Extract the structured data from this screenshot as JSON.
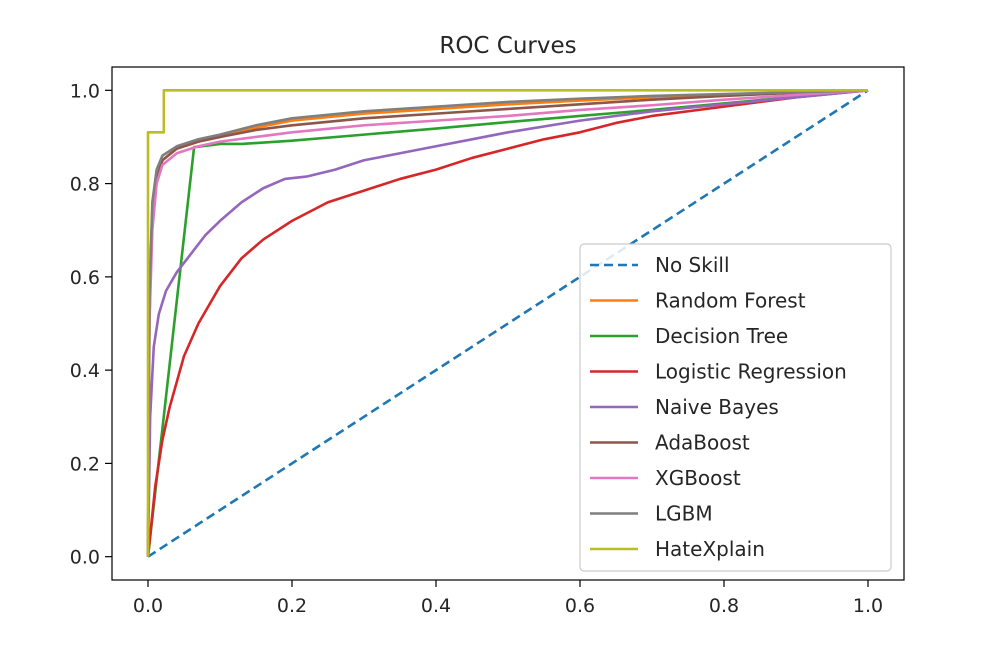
{
  "chart_data": {
    "type": "line",
    "title": "ROC Curves",
    "xlabel": "",
    "ylabel": "",
    "xlim": [
      -0.05,
      1.05
    ],
    "ylim": [
      -0.05,
      1.05
    ],
    "x_ticks": [
      "0.0",
      "0.2",
      "0.4",
      "0.6",
      "0.8",
      "1.0"
    ],
    "x_tick_values": [
      0.0,
      0.2,
      0.4,
      0.6,
      0.8,
      1.0
    ],
    "y_ticks": [
      "0.0",
      "0.2",
      "0.4",
      "0.6",
      "0.8",
      "1.0"
    ],
    "y_tick_values": [
      0.0,
      0.2,
      0.4,
      0.6,
      0.8,
      1.0
    ],
    "grid": false,
    "legend_position": "lower-right",
    "series": [
      {
        "name": "No Skill",
        "color": "#1f77b4",
        "dashed": true,
        "points": [
          [
            0,
            0
          ],
          [
            1,
            1
          ]
        ]
      },
      {
        "name": "Random Forest",
        "color": "#ff7f0e",
        "dashed": false,
        "points": [
          [
            0,
            0
          ],
          [
            0.002,
            0.5
          ],
          [
            0.005,
            0.7
          ],
          [
            0.01,
            0.8
          ],
          [
            0.02,
            0.85
          ],
          [
            0.04,
            0.875
          ],
          [
            0.07,
            0.89
          ],
          [
            0.1,
            0.9
          ],
          [
            0.15,
            0.92
          ],
          [
            0.2,
            0.935
          ],
          [
            0.3,
            0.95
          ],
          [
            0.4,
            0.96
          ],
          [
            0.5,
            0.97
          ],
          [
            0.6,
            0.978
          ],
          [
            0.7,
            0.985
          ],
          [
            0.8,
            0.99
          ],
          [
            0.9,
            0.995
          ],
          [
            1,
            1
          ]
        ]
      },
      {
        "name": "Decision Tree",
        "color": "#2ca02c",
        "dashed": false,
        "points": [
          [
            0,
            0
          ],
          [
            0.064,
            0.878
          ],
          [
            0.1,
            0.885
          ],
          [
            0.13,
            0.885
          ],
          [
            0.2,
            0.892
          ],
          [
            0.3,
            0.905
          ],
          [
            0.4,
            0.918
          ],
          [
            0.5,
            0.932
          ],
          [
            0.6,
            0.945
          ],
          [
            0.7,
            0.958
          ],
          [
            0.8,
            0.972
          ],
          [
            0.9,
            0.986
          ],
          [
            1,
            1
          ]
        ]
      },
      {
        "name": "Logistic Regression",
        "color": "#d62728",
        "dashed": false,
        "points": [
          [
            0,
            0
          ],
          [
            0.01,
            0.15
          ],
          [
            0.02,
            0.25
          ],
          [
            0.03,
            0.32
          ],
          [
            0.05,
            0.43
          ],
          [
            0.07,
            0.5
          ],
          [
            0.1,
            0.58
          ],
          [
            0.13,
            0.64
          ],
          [
            0.16,
            0.68
          ],
          [
            0.2,
            0.72
          ],
          [
            0.25,
            0.76
          ],
          [
            0.3,
            0.785
          ],
          [
            0.35,
            0.81
          ],
          [
            0.4,
            0.83
          ],
          [
            0.45,
            0.855
          ],
          [
            0.5,
            0.875
          ],
          [
            0.55,
            0.895
          ],
          [
            0.6,
            0.91
          ],
          [
            0.65,
            0.93
          ],
          [
            0.7,
            0.945
          ],
          [
            0.8,
            0.965
          ],
          [
            0.9,
            0.985
          ],
          [
            1,
            1
          ]
        ]
      },
      {
        "name": "Naive Bayes",
        "color": "#9467bd",
        "dashed": false,
        "points": [
          [
            0,
            0
          ],
          [
            0.003,
            0.3
          ],
          [
            0.008,
            0.45
          ],
          [
            0.015,
            0.52
          ],
          [
            0.025,
            0.57
          ],
          [
            0.04,
            0.61
          ],
          [
            0.06,
            0.65
          ],
          [
            0.08,
            0.69
          ],
          [
            0.1,
            0.72
          ],
          [
            0.13,
            0.76
          ],
          [
            0.16,
            0.79
          ],
          [
            0.19,
            0.81
          ],
          [
            0.22,
            0.815
          ],
          [
            0.26,
            0.83
          ],
          [
            0.3,
            0.85
          ],
          [
            0.35,
            0.865
          ],
          [
            0.4,
            0.88
          ],
          [
            0.45,
            0.895
          ],
          [
            0.5,
            0.91
          ],
          [
            0.6,
            0.935
          ],
          [
            0.7,
            0.955
          ],
          [
            0.8,
            0.97
          ],
          [
            0.9,
            0.985
          ],
          [
            1,
            1
          ]
        ]
      },
      {
        "name": "AdaBoost",
        "color": "#8c564b",
        "dashed": false,
        "points": [
          [
            0,
            0
          ],
          [
            0.002,
            0.55
          ],
          [
            0.006,
            0.74
          ],
          [
            0.012,
            0.81
          ],
          [
            0.02,
            0.85
          ],
          [
            0.04,
            0.875
          ],
          [
            0.07,
            0.89
          ],
          [
            0.1,
            0.9
          ],
          [
            0.15,
            0.915
          ],
          [
            0.2,
            0.925
          ],
          [
            0.3,
            0.94
          ],
          [
            0.4,
            0.95
          ],
          [
            0.5,
            0.96
          ],
          [
            0.6,
            0.97
          ],
          [
            0.7,
            0.98
          ],
          [
            0.8,
            0.988
          ],
          [
            0.9,
            0.995
          ],
          [
            1,
            1
          ]
        ]
      },
      {
        "name": "XGBoost",
        "color": "#e377c2",
        "dashed": false,
        "points": [
          [
            0,
            0
          ],
          [
            0.002,
            0.5
          ],
          [
            0.006,
            0.7
          ],
          [
            0.012,
            0.8
          ],
          [
            0.02,
            0.84
          ],
          [
            0.04,
            0.865
          ],
          [
            0.07,
            0.88
          ],
          [
            0.1,
            0.89
          ],
          [
            0.15,
            0.9
          ],
          [
            0.2,
            0.91
          ],
          [
            0.3,
            0.925
          ],
          [
            0.4,
            0.935
          ],
          [
            0.5,
            0.945
          ],
          [
            0.6,
            0.958
          ],
          [
            0.7,
            0.968
          ],
          [
            0.8,
            0.98
          ],
          [
            0.9,
            0.99
          ],
          [
            1,
            1
          ]
        ]
      },
      {
        "name": "LGBM",
        "color": "#7f7f7f",
        "dashed": false,
        "points": [
          [
            0,
            0
          ],
          [
            0.002,
            0.56
          ],
          [
            0.006,
            0.76
          ],
          [
            0.012,
            0.83
          ],
          [
            0.02,
            0.86
          ],
          [
            0.04,
            0.88
          ],
          [
            0.07,
            0.895
          ],
          [
            0.1,
            0.905
          ],
          [
            0.15,
            0.925
          ],
          [
            0.2,
            0.94
          ],
          [
            0.3,
            0.955
          ],
          [
            0.4,
            0.965
          ],
          [
            0.5,
            0.975
          ],
          [
            0.6,
            0.982
          ],
          [
            0.7,
            0.988
          ],
          [
            0.8,
            0.992
          ],
          [
            0.9,
            0.996
          ],
          [
            1,
            1
          ]
        ]
      },
      {
        "name": "HateXplain",
        "color": "#bcbd22",
        "dashed": false,
        "points": [
          [
            0,
            0
          ],
          [
            0,
            0.91
          ],
          [
            0.022,
            0.91
          ],
          [
            0.022,
            1.0
          ],
          [
            1,
            1
          ]
        ]
      }
    ]
  }
}
